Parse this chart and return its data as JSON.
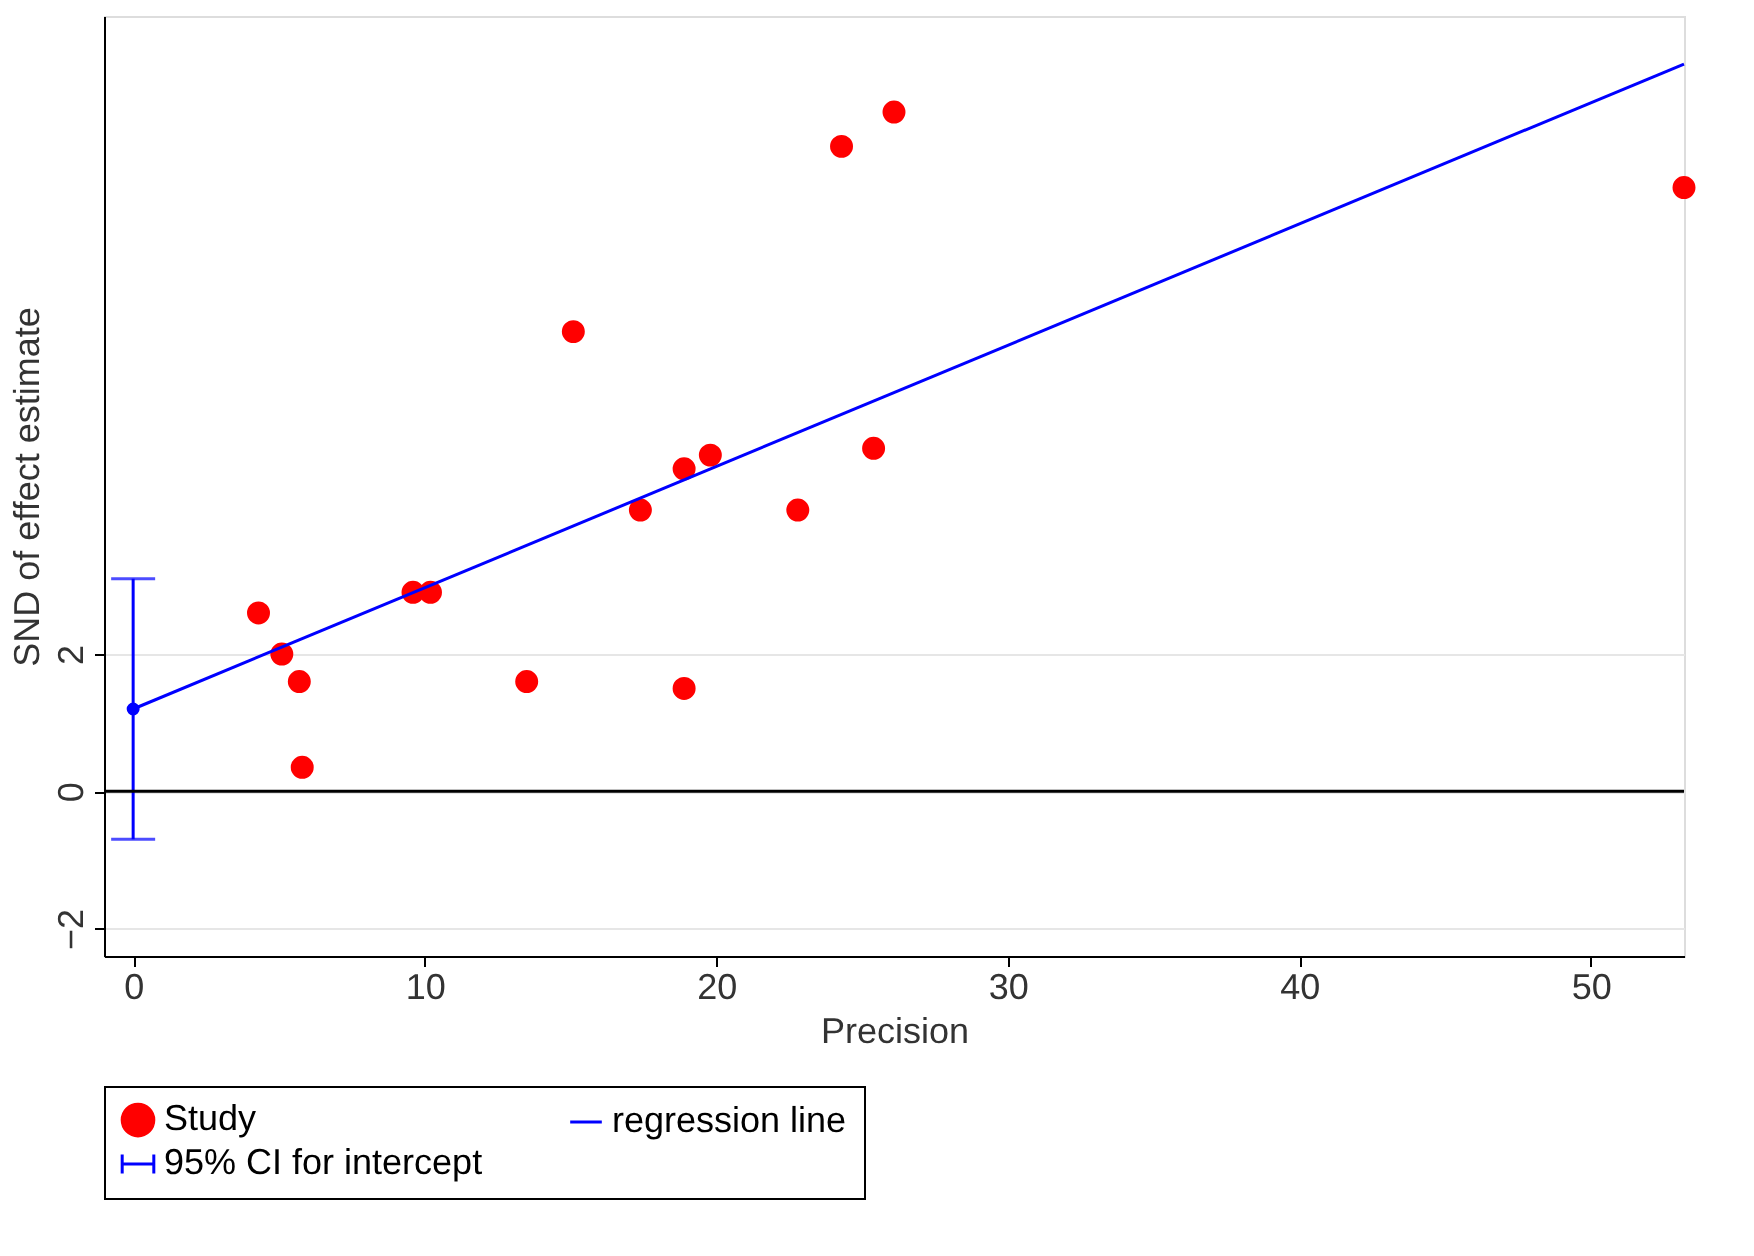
{
  "chart_data": {
    "type": "scatter",
    "xlabel": "Precision",
    "ylabel": "SND of effect estimate",
    "xlim": [
      -1,
      53.2
    ],
    "ylim": [
      -2.4,
      11.3
    ],
    "xticks": [
      0,
      10,
      20,
      30,
      40,
      50
    ],
    "yticks": [
      -2,
      0,
      2
    ],
    "grid": "y",
    "legend": "bottom",
    "ref_lines": [
      {
        "axis": "y",
        "value": 0,
        "color": "#000000"
      }
    ],
    "series": [
      {
        "name": "Study",
        "marker": "circle",
        "color": "#ff0000",
        "x": [
          4.3,
          5.1,
          5.7,
          5.8,
          9.6,
          10.2,
          13.5,
          15.1,
          17.4,
          18.9,
          18.9,
          19.8,
          22.8,
          24.3,
          25.4,
          26.1,
          53.2
        ],
        "values": [
          2.6,
          2.0,
          1.6,
          0.35,
          2.9,
          2.9,
          1.6,
          6.7,
          4.1,
          4.7,
          1.5,
          4.9,
          4.1,
          9.4,
          5.0,
          9.9,
          8.8
        ]
      },
      {
        "name": "regression line",
        "type": "line",
        "marker": "none",
        "color": "#0000ff",
        "x": [
          0,
          53.2
        ],
        "values": [
          1.2,
          10.6
        ]
      },
      {
        "name": "95% CI for intercept",
        "type": "scatter",
        "marker": "circle",
        "color": "#0000ff",
        "x": [
          0
        ],
        "values": [
          1.2
        ],
        "errors": [
          [
            -0.7,
            3.1
          ]
        ]
      }
    ]
  }
}
